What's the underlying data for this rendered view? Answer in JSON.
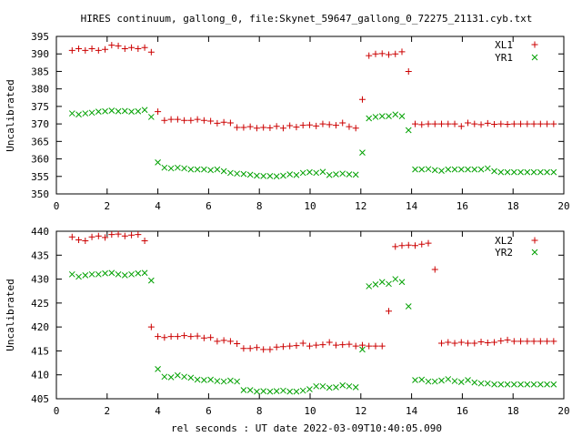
{
  "chart_data": {
    "title": "HIRES continuum, gallong_0, file:Skynet_59647_gallong_0_72275_21131.cyb.txt",
    "xlabel": "rel seconds : UT date 2022-03-09T10:40:05.090",
    "x_ticks": [
      "0",
      "2",
      "4",
      "6",
      "8",
      "10",
      "12",
      "14",
      "16",
      "18",
      "20"
    ],
    "xlim": [
      0,
      20
    ],
    "grid": false,
    "legend_position": "top-right",
    "colors": {
      "red": "#cc0000",
      "green": "#00a000"
    },
    "panels": [
      {
        "type": "scatter",
        "ylabel": "Uncalibrated",
        "ylim": [
          350,
          395
        ],
        "y_ticks": [
          "350",
          "355",
          "360",
          "365",
          "370",
          "375",
          "380",
          "385",
          "390",
          "395"
        ],
        "series": [
          {
            "name": "XL1",
            "marker": "+",
            "color": "#cc0000",
            "x": [
              0.62,
              0.88,
              1.14,
              1.4,
              1.66,
              1.92,
              2.18,
              2.44,
              2.7,
              2.96,
              3.22,
              3.48,
              3.74,
              4.0,
              4.26,
              4.52,
              4.78,
              5.04,
              5.3,
              5.56,
              5.82,
              6.08,
              6.34,
              6.6,
              6.86,
              7.12,
              7.38,
              7.64,
              7.9,
              8.16,
              8.42,
              8.68,
              8.94,
              9.2,
              9.46,
              9.72,
              9.98,
              10.24,
              10.5,
              10.76,
              11.02,
              11.28,
              11.54,
              11.8,
              12.06,
              12.32,
              12.58,
              12.84,
              13.1,
              13.36,
              13.62,
              13.88,
              14.14,
              14.4,
              14.66,
              14.92,
              15.18,
              15.44,
              15.7,
              15.96,
              16.22,
              16.48,
              16.74,
              17.0,
              17.26,
              17.52,
              17.78,
              18.04,
              18.3,
              18.56,
              18.82,
              19.08,
              19.34,
              19.6
            ],
            "y": [
              391.0,
              391.5,
              391.0,
              391.5,
              391.0,
              391.3,
              392.5,
              392.3,
              391.5,
              391.8,
              391.5,
              391.8,
              390.5,
              373.5,
              371.0,
              371.3,
              371.3,
              371.0,
              371.0,
              371.3,
              371.0,
              370.8,
              370.2,
              370.5,
              370.3,
              369.0,
              369.0,
              369.2,
              368.8,
              369.0,
              368.9,
              369.3,
              368.8,
              369.5,
              369.1,
              369.6,
              369.7,
              369.4,
              370.0,
              369.8,
              369.6,
              370.3,
              369.2,
              368.8,
              377.0,
              389.5,
              390.0,
              390.1,
              389.8,
              390.0,
              390.6,
              385.0,
              370.0,
              369.8,
              370.0,
              370.0,
              370.0,
              370.0,
              370.0,
              369.3,
              370.3,
              370.0,
              369.8,
              370.2,
              369.9,
              370.0,
              369.9,
              370.0,
              370.0,
              370.0,
              370.0,
              370.0,
              370.0,
              370.0
            ],
            "x_count_note": ""
          },
          {
            "name": "YR1",
            "marker": "x",
            "color": "#00a000",
            "x": [
              0.62,
              0.88,
              1.14,
              1.4,
              1.66,
              1.92,
              2.18,
              2.44,
              2.7,
              2.96,
              3.22,
              3.48,
              3.74,
              4.0,
              4.26,
              4.52,
              4.78,
              5.04,
              5.3,
              5.56,
              5.82,
              6.08,
              6.34,
              6.6,
              6.86,
              7.12,
              7.38,
              7.64,
              7.9,
              8.16,
              8.42,
              8.68,
              8.94,
              9.2,
              9.46,
              9.72,
              9.98,
              10.24,
              10.5,
              10.76,
              11.02,
              11.28,
              11.54,
              11.8,
              12.06,
              12.32,
              12.58,
              12.84,
              13.1,
              13.36,
              13.62,
              13.88,
              14.14,
              14.4,
              14.66,
              14.92,
              15.18,
              15.44,
              15.7,
              15.96,
              16.22,
              16.48,
              16.74,
              17.0,
              17.26,
              17.52,
              17.78,
              18.04,
              18.3,
              18.56,
              18.82,
              19.08,
              19.34,
              19.6
            ],
            "y": [
              373.0,
              372.7,
              373.0,
              373.2,
              373.5,
              373.6,
              373.8,
              373.6,
              373.7,
              373.5,
              373.6,
              374.0,
              372.0,
              359.0,
              357.5,
              357.3,
              357.5,
              357.3,
              357.0,
              357.0,
              357.0,
              356.8,
              357.0,
              356.5,
              356.0,
              355.8,
              355.7,
              355.5,
              355.2,
              355.1,
              355.1,
              355.0,
              355.2,
              355.6,
              355.4,
              356.0,
              356.2,
              356.0,
              356.3,
              355.4,
              355.6,
              355.8,
              355.6,
              355.5,
              361.8,
              371.6,
              372.0,
              372.2,
              372.2,
              372.7,
              372.2,
              368.2,
              357.0,
              357.0,
              357.1,
              356.8,
              356.6,
              357.0,
              357.0,
              357.0,
              357.0,
              357.0,
              357.0,
              357.3,
              356.5,
              356.2,
              356.2,
              356.2,
              356.2,
              356.2,
              356.2,
              356.2,
              356.2,
              356.2
            ]
          }
        ]
      },
      {
        "type": "scatter",
        "ylabel": "Uncalibrated",
        "ylim": [
          405,
          440
        ],
        "y_ticks": [
          "405",
          "410",
          "415",
          "420",
          "425",
          "430",
          "435",
          "440"
        ],
        "series": [
          {
            "name": "XL2",
            "marker": "+",
            "color": "#cc0000",
            "x": [
              0.62,
              0.88,
              1.14,
              1.4,
              1.66,
              1.92,
              2.18,
              2.44,
              2.7,
              2.96,
              3.22,
              3.48,
              3.74,
              4.0,
              4.26,
              4.52,
              4.78,
              5.04,
              5.3,
              5.56,
              5.82,
              6.08,
              6.34,
              6.6,
              6.86,
              7.12,
              7.38,
              7.64,
              7.9,
              8.16,
              8.42,
              8.68,
              8.94,
              9.2,
              9.46,
              9.72,
              9.98,
              10.24,
              10.5,
              10.76,
              11.02,
              11.28,
              11.54,
              11.8,
              12.06,
              12.32,
              12.58,
              12.84,
              13.1,
              13.36,
              13.62,
              13.88,
              14.14,
              14.4,
              14.66,
              14.92,
              15.18,
              15.44,
              15.7,
              15.96,
              16.22,
              16.48,
              16.74,
              17.0,
              17.26,
              17.52,
              17.78,
              18.04,
              18.3,
              18.56,
              18.82,
              19.08,
              19.34,
              19.6
            ],
            "y": [
              438.8,
              438.2,
              438.0,
              438.8,
              439.0,
              438.7,
              439.3,
              439.4,
              439.0,
              439.2,
              439.3,
              438.0,
              420.0,
              418.0,
              417.8,
              418.0,
              418.0,
              418.2,
              418.0,
              418.1,
              417.7,
              417.8,
              417.0,
              417.2,
              417.0,
              416.5,
              415.5,
              415.5,
              415.7,
              415.3,
              415.3,
              415.8,
              415.9,
              416.0,
              416.1,
              416.6,
              416.0,
              416.2,
              416.3,
              416.8,
              416.2,
              416.3,
              416.4,
              416.0,
              416.2,
              416.0,
              416.0,
              416.0,
              423.3,
              436.8,
              437.0,
              437.1,
              437.0,
              437.3,
              437.5,
              432.0,
              416.6,
              416.8,
              416.6,
              416.8,
              416.6,
              416.6,
              416.9,
              416.7,
              416.8,
              417.1,
              417.3,
              417.0,
              417.0,
              417.0,
              417.0,
              417.0,
              417.0,
              417.0
            ]
          },
          {
            "name": "YR2",
            "marker": "x",
            "color": "#00a000",
            "x": [
              0.62,
              0.88,
              1.14,
              1.4,
              1.66,
              1.92,
              2.18,
              2.44,
              2.7,
              2.96,
              3.22,
              3.48,
              3.74,
              4.0,
              4.26,
              4.52,
              4.78,
              5.04,
              5.3,
              5.56,
              5.82,
              6.08,
              6.34,
              6.6,
              6.86,
              7.12,
              7.38,
              7.64,
              7.9,
              8.16,
              8.42,
              8.68,
              8.94,
              9.2,
              9.46,
              9.72,
              9.98,
              10.24,
              10.5,
              10.76,
              11.02,
              11.28,
              11.54,
              11.8,
              12.06,
              12.32,
              12.58,
              12.84,
              13.1,
              13.36,
              13.62,
              13.88,
              14.14,
              14.4,
              14.66,
              14.92,
              15.18,
              15.44,
              15.7,
              15.96,
              16.22,
              16.48,
              16.74,
              17.0,
              17.26,
              17.52,
              17.78,
              18.04,
              18.3,
              18.56,
              18.82,
              19.08,
              19.34,
              19.6
            ],
            "y": [
              431.0,
              430.5,
              430.8,
              431.0,
              431.0,
              431.2,
              431.3,
              431.0,
              430.8,
              431.0,
              431.2,
              431.3,
              429.7,
              411.2,
              409.6,
              409.5,
              409.9,
              409.6,
              409.4,
              409.0,
              408.9,
              409.0,
              408.7,
              408.6,
              408.8,
              408.6,
              406.8,
              406.8,
              406.5,
              406.6,
              406.5,
              406.6,
              406.7,
              406.5,
              406.5,
              406.7,
              407.0,
              407.6,
              407.6,
              407.3,
              407.4,
              407.8,
              407.6,
              407.4,
              415.3,
              428.5,
              428.9,
              429.4,
              429.0,
              430.0,
              429.4,
              424.3,
              408.9,
              409.0,
              408.6,
              408.6,
              408.8,
              409.1,
              408.7,
              408.5,
              408.9,
              408.4,
              408.2,
              408.2,
              408.0,
              408.0,
              408.0,
              408.0,
              408.0,
              408.0,
              408.0,
              408.0,
              408.0,
              408.0
            ]
          }
        ]
      }
    ]
  }
}
